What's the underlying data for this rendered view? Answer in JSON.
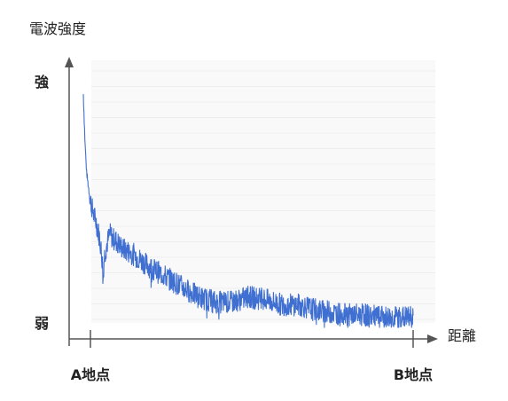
{
  "colors": {
    "series": "#3f6fd0",
    "axis": "#555555",
    "grid": "#eeeeee",
    "plot_bg": "#f9f9f9",
    "text": "#222222"
  },
  "chart_data": {
    "type": "line",
    "title": "",
    "ylabel": "電波強度",
    "xlabel": "距離",
    "y_tick_labels": [
      "強",
      "弱"
    ],
    "x_tick_labels": [
      "A地点",
      "B地点"
    ],
    "xlim": [
      0,
      1
    ],
    "ylim": [
      0,
      1
    ],
    "axis_ticks": "labels only, no numeric values",
    "grid": true,
    "series": [
      {
        "style": "noisy line",
        "x": [
          0.0,
          0.005,
          0.01,
          0.02,
          0.03,
          0.04,
          0.05,
          0.06,
          0.065,
          0.07,
          0.08,
          0.09,
          0.1,
          0.12,
          0.15,
          0.18,
          0.2,
          0.25,
          0.3,
          0.35,
          0.4,
          0.45,
          0.5,
          0.55,
          0.6,
          0.65,
          0.7,
          0.75,
          0.8,
          0.85,
          0.9,
          0.95,
          1.0
        ],
        "values": [
          0.93,
          0.74,
          0.62,
          0.52,
          0.46,
          0.42,
          0.36,
          0.24,
          0.3,
          0.33,
          0.38,
          0.36,
          0.35,
          0.32,
          0.3,
          0.27,
          0.25,
          0.21,
          0.17,
          0.13,
          0.11,
          0.11,
          0.13,
          0.12,
          0.1,
          0.1,
          0.08,
          0.07,
          0.06,
          0.06,
          0.05,
          0.05,
          0.05
        ],
        "color": "#3f6fd0"
      }
    ]
  }
}
